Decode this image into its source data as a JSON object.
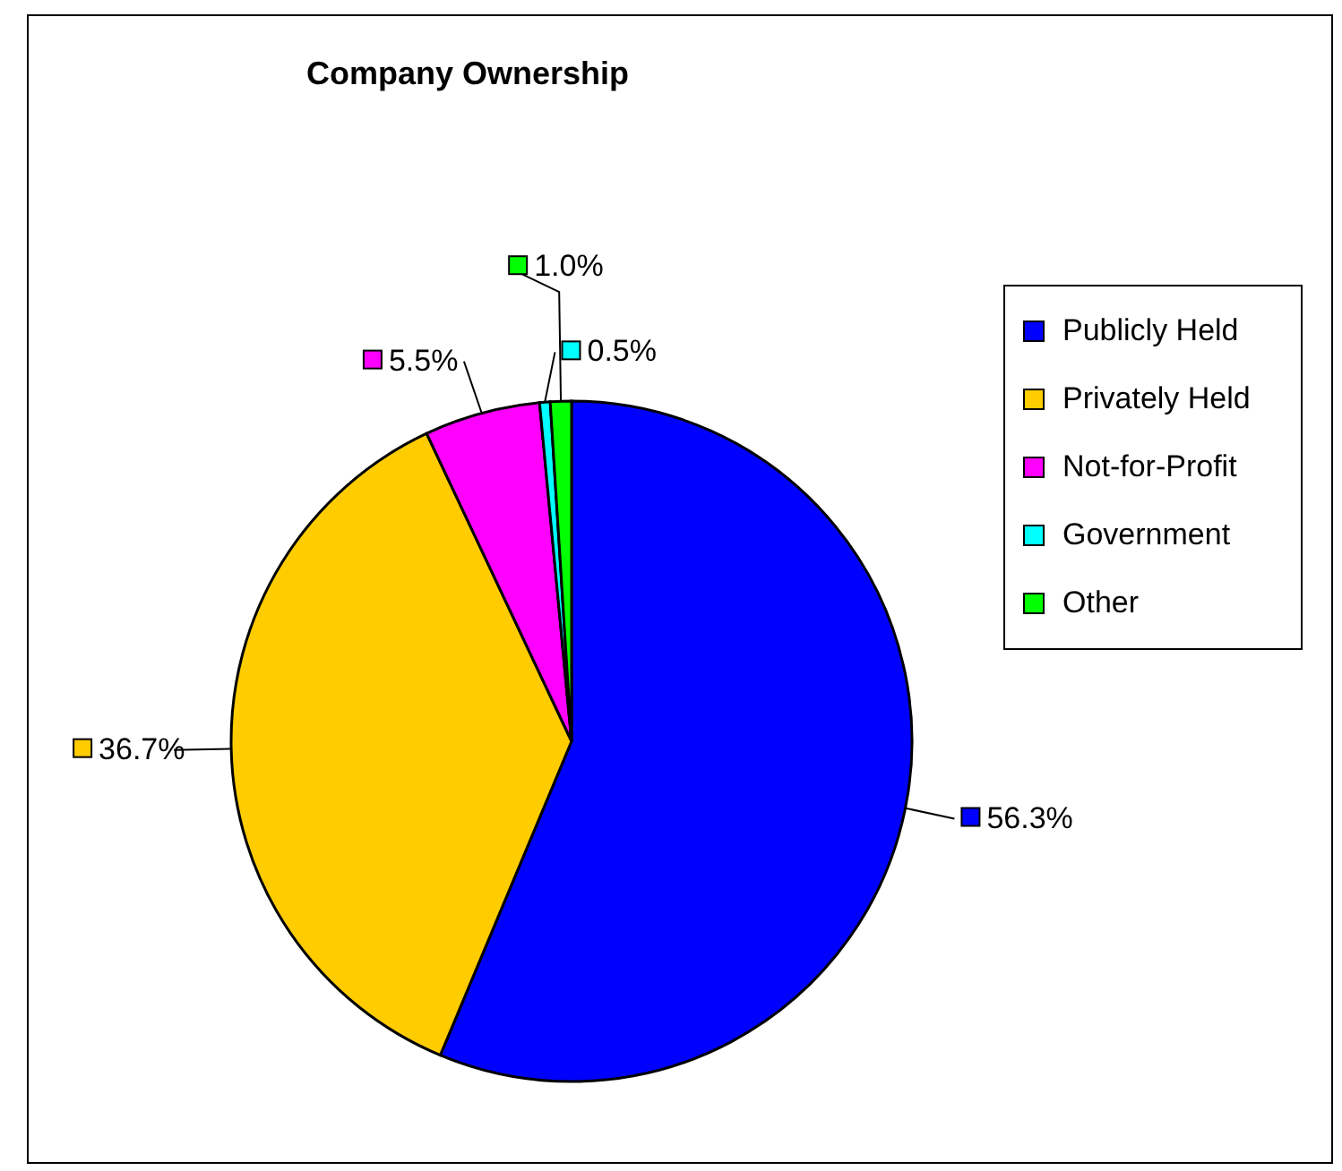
{
  "chart_data": {
    "type": "pie",
    "title": "Company Ownership",
    "categories": [
      "Publicly Held",
      "Privately Held",
      "Not-for-Profit",
      "Government",
      "Other"
    ],
    "values": [
      56.3,
      36.7,
      5.5,
      0.5,
      1.0
    ],
    "value_labels": [
      "56.3%",
      "36.7%",
      "5.5%",
      "0.5%",
      "1.0%"
    ],
    "colors": [
      "#0000ff",
      "#ffcc00",
      "#ff00ff",
      "#00ffff",
      "#00ff00"
    ],
    "legend": "right"
  }
}
